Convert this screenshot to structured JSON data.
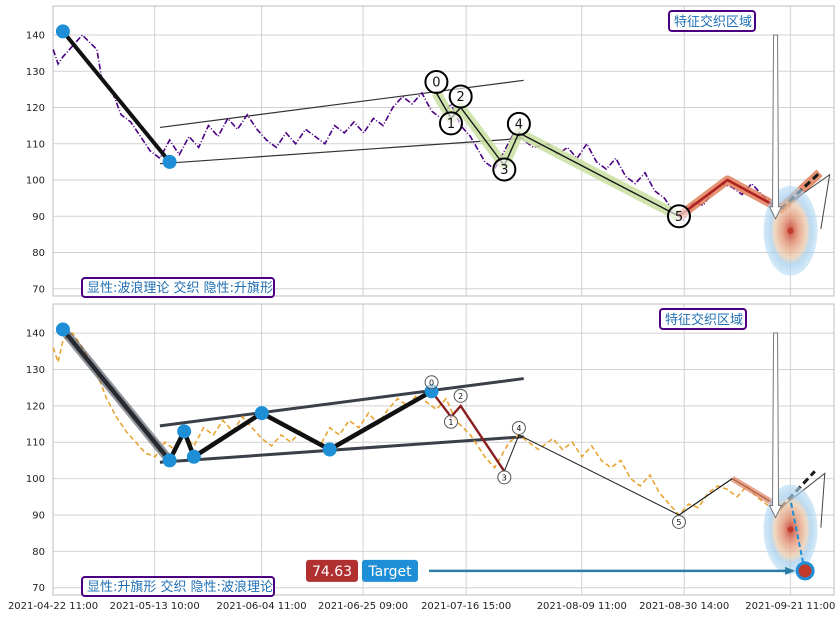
{
  "chart_data": {
    "type": "line",
    "xlim": [
      "2021-04-22 11:00",
      "2021-09-30 11:00"
    ],
    "ylim": [
      68,
      148
    ],
    "x_ticks": [
      "2021-04-22 11:00",
      "2021-05-13 10:00",
      "2021-06-04 11:00",
      "2021-06-25 09:00",
      "2021-07-16 15:00",
      "2021-08-09 11:00",
      "2021-08-30 14:00",
      "2021-09-21 11:00"
    ],
    "y_ticks": [
      70,
      80,
      90,
      100,
      110,
      120,
      130,
      140
    ],
    "grid": true,
    "colors": {
      "price_top": "#4b0082",
      "price_bottom": "#e8a533",
      "pivot": "#1e8fd6",
      "wave_fill": "#c9dfa0",
      "target_fill": "#e07f5a",
      "label_box_border": "#4b0082",
      "label_box_text": "#1f6fb3",
      "target_value_bg": "#b03030",
      "target_label_bg": "#1e8fd6"
    },
    "panels": [
      {
        "price_series": [
          [
            "2021-04-22",
            136
          ],
          [
            "2021-04-23",
            132
          ],
          [
            "2021-04-24",
            134
          ],
          [
            "2021-04-26",
            137
          ],
          [
            "2021-04-28",
            140
          ],
          [
            "2021-05-01",
            136
          ],
          [
            "2021-05-02",
            128
          ],
          [
            "2021-05-04",
            125
          ],
          [
            "2021-05-06",
            118
          ],
          [
            "2021-05-08",
            116
          ],
          [
            "2021-05-10",
            112
          ],
          [
            "2021-05-12",
            108
          ],
          [
            "2021-05-14",
            106
          ],
          [
            "2021-05-16",
            111
          ],
          [
            "2021-05-18",
            107
          ],
          [
            "2021-05-20",
            112
          ],
          [
            "2021-05-22",
            109
          ],
          [
            "2021-05-24",
            115
          ],
          [
            "2021-05-26",
            112
          ],
          [
            "2021-05-28",
            117
          ],
          [
            "2021-05-30",
            114
          ],
          [
            "2021-06-01",
            118
          ],
          [
            "2021-06-03",
            114
          ],
          [
            "2021-06-05",
            111
          ],
          [
            "2021-06-07",
            109
          ],
          [
            "2021-06-09",
            113
          ],
          [
            "2021-06-11",
            110
          ],
          [
            "2021-06-13",
            114
          ],
          [
            "2021-06-15",
            112
          ],
          [
            "2021-06-17",
            110
          ],
          [
            "2021-06-19",
            115
          ],
          [
            "2021-06-21",
            113
          ],
          [
            "2021-06-23",
            116
          ],
          [
            "2021-06-25",
            113
          ],
          [
            "2021-06-27",
            117
          ],
          [
            "2021-06-29",
            115
          ],
          [
            "2021-07-01",
            120
          ],
          [
            "2021-07-03",
            123
          ],
          [
            "2021-07-05",
            121
          ],
          [
            "2021-07-07",
            124
          ],
          [
            "2021-07-09",
            119
          ],
          [
            "2021-07-11",
            117
          ],
          [
            "2021-07-13",
            121
          ],
          [
            "2021-07-15",
            115
          ],
          [
            "2021-07-17",
            112
          ],
          [
            "2021-07-20",
            105
          ],
          [
            "2021-07-22",
            103
          ],
          [
            "2021-07-24",
            108
          ],
          [
            "2021-07-26",
            113
          ],
          [
            "2021-07-28",
            111
          ],
          [
            "2021-07-30",
            109
          ],
          [
            "2021-08-02",
            110
          ],
          [
            "2021-08-04",
            107
          ],
          [
            "2021-08-06",
            109
          ],
          [
            "2021-08-08",
            106
          ],
          [
            "2021-08-10",
            110
          ],
          [
            "2021-08-12",
            105
          ],
          [
            "2021-08-14",
            103
          ],
          [
            "2021-08-16",
            106
          ],
          [
            "2021-08-18",
            101
          ],
          [
            "2021-08-20",
            99
          ],
          [
            "2021-08-22",
            102
          ],
          [
            "2021-08-24",
            97
          ],
          [
            "2021-08-26",
            95
          ],
          [
            "2021-08-28",
            91
          ],
          [
            "2021-08-30",
            89
          ],
          [
            "2021-09-01",
            94
          ],
          [
            "2021-09-03",
            93
          ],
          [
            "2021-09-05",
            97
          ],
          [
            "2021-09-07",
            99
          ],
          [
            "2021-09-09",
            98
          ],
          [
            "2021-09-11",
            96
          ],
          [
            "2021-09-13",
            99
          ],
          [
            "2021-09-15",
            96
          ],
          [
            "2021-09-17",
            94
          ],
          [
            "2021-09-19",
            92
          ],
          [
            "2021-09-21",
            93
          ]
        ],
        "main_pivots": [
          [
            "2021-04-24",
            141
          ],
          [
            "2021-05-16",
            105
          ]
        ],
        "channel": [
          [
            [
              "2021-05-14",
              114.5
            ],
            [
              "2021-07-28",
              127.5
            ]
          ],
          [
            [
              "2021-05-14",
              104.5
            ],
            [
              "2021-07-28",
              111.5
            ]
          ]
        ],
        "wave_points": [
          [
            "2021-07-10",
            124
          ],
          [
            "2021-07-13",
            117
          ],
          [
            "2021-07-15",
            120
          ],
          [
            "2021-07-24",
            104
          ],
          [
            "2021-07-27",
            113
          ],
          [
            "2021-08-29",
            90
          ]
        ],
        "wave_labels": [
          "0",
          "1",
          "2",
          "3",
          "4",
          "5"
        ],
        "target_path": [
          [
            "2021-08-29",
            90
          ],
          [
            "2021-09-08",
            100
          ],
          [
            "2021-09-19",
            92
          ],
          [
            "2021-09-27",
            102
          ]
        ],
        "zone_center": [
          "2021-09-21",
          86
        ],
        "label_text": "显性:波浪理论 交织 隐性:升旗形",
        "zone_title": "特征交织区域"
      },
      {
        "price_series": [
          [
            "2021-04-22",
            136
          ],
          [
            "2021-04-23",
            132
          ],
          [
            "2021-04-24",
            138
          ],
          [
            "2021-04-26",
            140
          ],
          [
            "2021-04-28",
            136
          ],
          [
            "2021-05-01",
            129
          ],
          [
            "2021-05-03",
            122
          ],
          [
            "2021-05-05",
            117
          ],
          [
            "2021-05-07",
            113
          ],
          [
            "2021-05-09",
            110
          ],
          [
            "2021-05-11",
            107
          ],
          [
            "2021-05-13",
            106
          ],
          [
            "2021-05-15",
            110
          ],
          [
            "2021-05-17",
            108
          ],
          [
            "2021-05-19",
            112
          ],
          [
            "2021-05-21",
            109
          ],
          [
            "2021-05-23",
            114
          ],
          [
            "2021-05-25",
            112
          ],
          [
            "2021-05-27",
            116
          ],
          [
            "2021-05-29",
            113
          ],
          [
            "2021-05-31",
            117
          ],
          [
            "2021-06-02",
            114
          ],
          [
            "2021-06-04",
            111
          ],
          [
            "2021-06-06",
            109
          ],
          [
            "2021-06-08",
            112
          ],
          [
            "2021-06-10",
            110
          ],
          [
            "2021-06-12",
            113
          ],
          [
            "2021-06-14",
            111
          ],
          [
            "2021-06-16",
            109
          ],
          [
            "2021-06-18",
            114
          ],
          [
            "2021-06-20",
            112
          ],
          [
            "2021-06-22",
            116
          ],
          [
            "2021-06-24",
            114
          ],
          [
            "2021-06-26",
            118
          ],
          [
            "2021-06-28",
            115
          ],
          [
            "2021-06-30",
            119
          ],
          [
            "2021-07-02",
            122
          ],
          [
            "2021-07-04",
            120
          ],
          [
            "2021-07-06",
            123
          ],
          [
            "2021-07-08",
            121
          ],
          [
            "2021-07-10",
            119
          ],
          [
            "2021-07-12",
            122
          ],
          [
            "2021-07-14",
            116
          ],
          [
            "2021-07-17",
            112
          ],
          [
            "2021-07-20",
            106
          ],
          [
            "2021-07-22",
            103
          ],
          [
            "2021-07-25",
            110
          ],
          [
            "2021-07-27",
            112
          ],
          [
            "2021-07-29",
            110
          ],
          [
            "2021-07-31",
            108
          ],
          [
            "2021-08-03",
            111
          ],
          [
            "2021-08-05",
            108
          ],
          [
            "2021-08-07",
            110
          ],
          [
            "2021-08-09",
            106
          ],
          [
            "2021-08-11",
            109
          ],
          [
            "2021-08-13",
            105
          ],
          [
            "2021-08-15",
            103
          ],
          [
            "2021-08-17",
            105
          ],
          [
            "2021-08-19",
            100
          ],
          [
            "2021-08-21",
            98
          ],
          [
            "2021-08-23",
            101
          ],
          [
            "2021-08-25",
            96
          ],
          [
            "2021-08-27",
            93
          ],
          [
            "2021-08-29",
            90
          ],
          [
            "2021-08-31",
            93
          ],
          [
            "2021-09-02",
            92
          ],
          [
            "2021-09-04",
            96
          ],
          [
            "2021-09-06",
            98
          ],
          [
            "2021-09-08",
            97
          ],
          [
            "2021-09-10",
            95
          ],
          [
            "2021-09-12",
            98
          ],
          [
            "2021-09-14",
            95
          ],
          [
            "2021-09-16",
            93
          ],
          [
            "2021-09-18",
            91
          ],
          [
            "2021-09-20",
            92
          ]
        ],
        "main_pivots": [
          [
            "2021-04-24",
            141
          ],
          [
            "2021-05-16",
            105
          ],
          [
            "2021-05-19",
            113
          ],
          [
            "2021-05-21",
            106
          ],
          [
            "2021-06-04",
            118
          ],
          [
            "2021-06-18",
            108
          ],
          [
            "2021-07-09",
            124
          ]
        ],
        "channel": [
          [
            [
              "2021-05-14",
              114.5
            ],
            [
              "2021-07-28",
              127.5
            ]
          ],
          [
            [
              "2021-05-14",
              104.5
            ],
            [
              "2021-07-28",
              111.5
            ]
          ]
        ],
        "wave_points": [
          [
            "2021-07-09",
            124
          ],
          [
            "2021-07-13",
            117
          ],
          [
            "2021-07-15",
            120
          ],
          [
            "2021-07-24",
            102
          ],
          [
            "2021-07-27",
            112
          ],
          [
            "2021-08-29",
            90
          ]
        ],
        "wave_labels": [
          "0",
          "1",
          "2",
          "3",
          "4",
          "5"
        ],
        "target_path": [
          [
            "2021-08-29",
            90
          ],
          [
            "2021-09-09",
            100
          ],
          [
            "2021-09-19",
            92
          ],
          [
            "2021-09-26",
            102
          ]
        ],
        "zone_center": [
          "2021-09-21",
          86
        ],
        "label_text": "显性:升旗形 交织 隐性:波浪理论",
        "zone_title": "特征交织区域",
        "target_point": [
          "2021-09-24",
          74.63
        ],
        "target_value_label": "74.63",
        "target_label": "Target"
      }
    ]
  }
}
